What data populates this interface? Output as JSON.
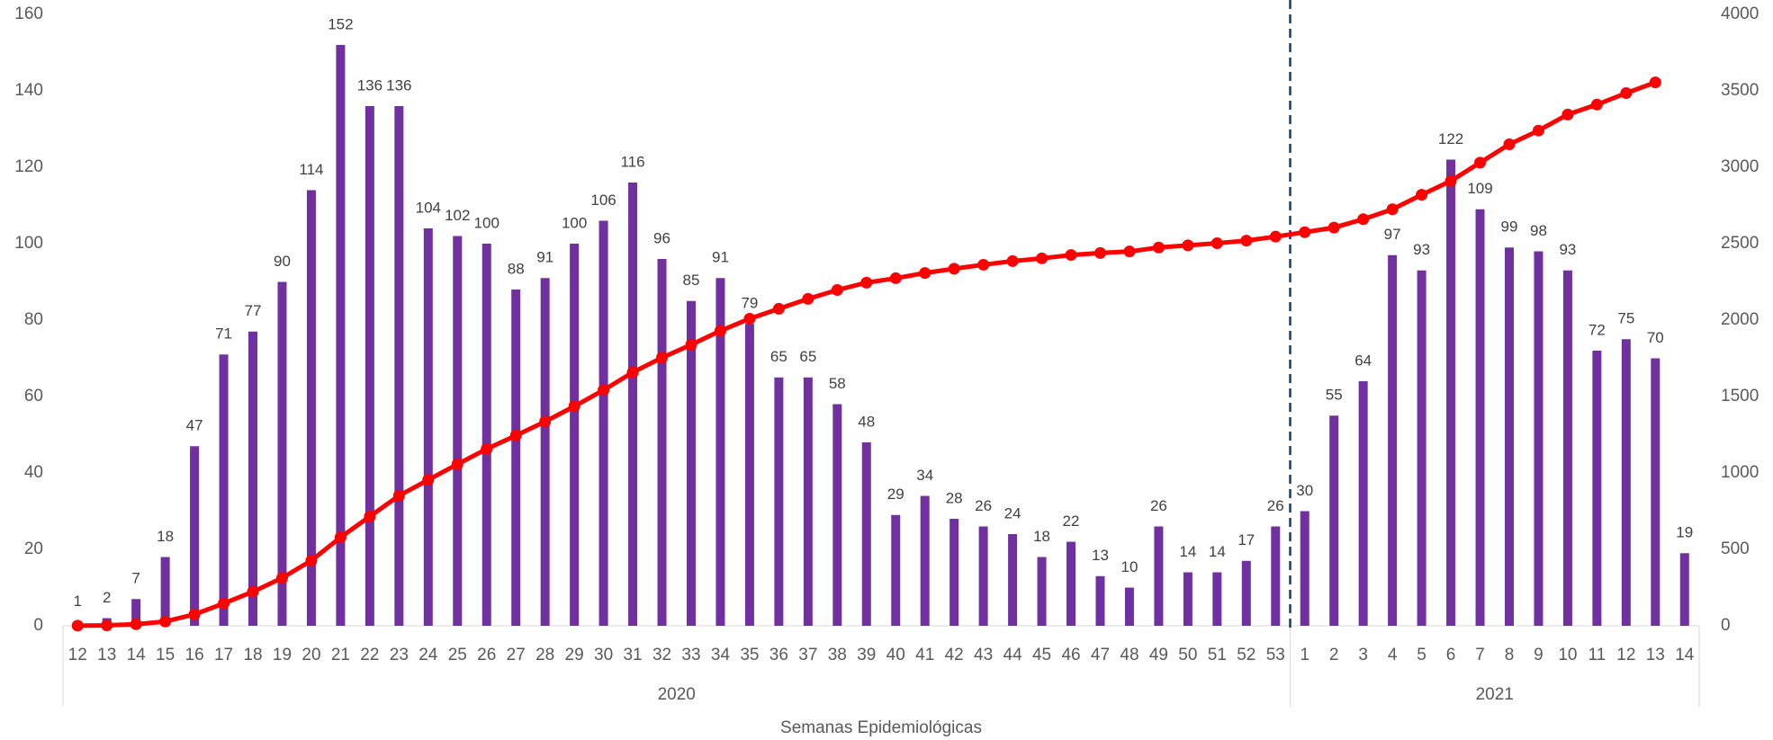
{
  "chart_data": {
    "type": "bar-line",
    "x_label": "Semanas Epidemiológicas",
    "groups": [
      {
        "name": "2020",
        "categories": [
          "12",
          "13",
          "14",
          "15",
          "16",
          "17",
          "18",
          "19",
          "20",
          "21",
          "22",
          "23",
          "24",
          "25",
          "26",
          "27",
          "28",
          "29",
          "30",
          "31",
          "32",
          "33",
          "34",
          "35",
          "36",
          "37",
          "38",
          "39",
          "40",
          "41",
          "42",
          "43",
          "44",
          "45",
          "46",
          "47",
          "48",
          "49",
          "50",
          "51",
          "52",
          "53"
        ]
      },
      {
        "name": "2021",
        "categories": [
          "1",
          "2",
          "3",
          "4",
          "5",
          "6",
          "7",
          "8",
          "9",
          "10",
          "11",
          "12",
          "13",
          "14"
        ]
      }
    ],
    "series": [
      {
        "type": "bar",
        "color": "#7030a0",
        "values": [
          1,
          2,
          7,
          18,
          47,
          71,
          77,
          90,
          114,
          152,
          136,
          136,
          104,
          102,
          100,
          88,
          91,
          100,
          106,
          116,
          96,
          85,
          91,
          79,
          65,
          65,
          58,
          48,
          29,
          34,
          28,
          26,
          24,
          18,
          22,
          13,
          10,
          26,
          14,
          14,
          17,
          26,
          30,
          55,
          64,
          97,
          93,
          122,
          109,
          99,
          98,
          93,
          72,
          75,
          70,
          19
        ]
      },
      {
        "type": "line",
        "axis": "y2",
        "color": "#ff0000",
        "values": [
          1,
          3,
          10,
          28,
          75,
          146,
          223,
          313,
          427,
          579,
          715,
          851,
          955,
          1057,
          1157,
          1245,
          1336,
          1436,
          1542,
          1658,
          1754,
          1839,
          1930,
          2009,
          2074,
          2139,
          2197,
          2245,
          2274,
          2308,
          2336,
          2362,
          2386,
          2404,
          2426,
          2439,
          2449,
          2475,
          2489,
          2503,
          2520,
          2546,
          2575,
          2605,
          2660,
          2725,
          2820,
          2910,
          3030,
          3150,
          3240,
          3345,
          3410,
          3485,
          3555,
          null
        ]
      }
    ],
    "ylim": [
      0,
      160
    ],
    "yticks": [
      0,
      20,
      40,
      60,
      80,
      100,
      120,
      140,
      160
    ],
    "y2lim": [
      0,
      4000
    ],
    "y2ticks": [
      0,
      500,
      1000,
      1500,
      2000,
      2500,
      3000,
      3500,
      4000
    ]
  }
}
